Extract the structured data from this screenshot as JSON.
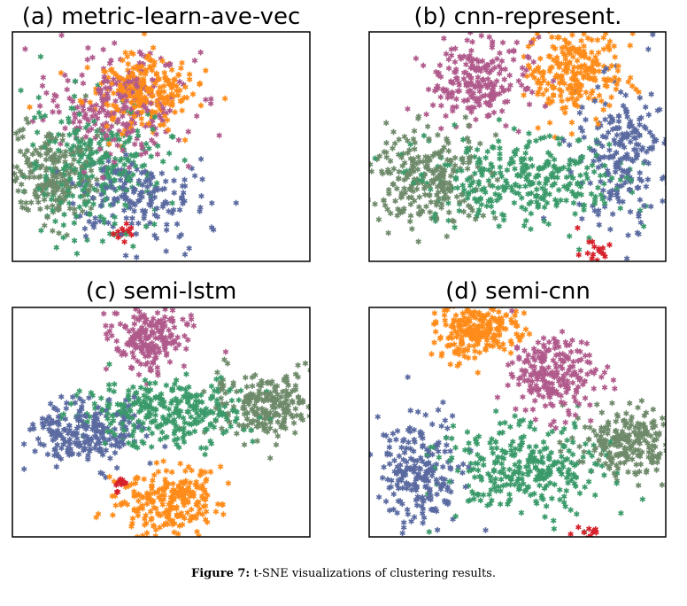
{
  "figure": {
    "caption_label": "Figure 7:",
    "caption_text": "t-SNE visualizations of clustering results."
  },
  "chart_data": [
    {
      "type": "scatter",
      "title": "(a) metric-learn-ave-vec",
      "xlabel": "",
      "ylabel": "",
      "grid": false,
      "marker": "asterisk",
      "series": [
        {
          "color": "#b05a8c",
          "clusters": [
            {
              "cx": 0.35,
              "cy": 0.68,
              "sx": 0.12,
              "sy": 0.12,
              "n": 240
            }
          ]
        },
        {
          "color": "#ff8c1a",
          "clusters": [
            {
              "cx": 0.42,
              "cy": 0.74,
              "sx": 0.09,
              "sy": 0.08,
              "n": 260
            }
          ]
        },
        {
          "color": "#5a6aa0",
          "clusters": [
            {
              "cx": 0.42,
              "cy": 0.28,
              "sx": 0.12,
              "sy": 0.09,
              "n": 170
            }
          ]
        },
        {
          "color": "#3a9a6a",
          "clusters": [
            {
              "cx": 0.28,
              "cy": 0.4,
              "sx": 0.12,
              "sy": 0.14,
              "n": 280
            }
          ]
        },
        {
          "color": "#6e8a6a",
          "clusters": [
            {
              "cx": 0.14,
              "cy": 0.38,
              "sx": 0.08,
              "sy": 0.1,
              "n": 220
            }
          ]
        },
        {
          "color": "#d6202a",
          "clusters": [
            {
              "cx": 0.37,
              "cy": 0.12,
              "sx": 0.02,
              "sy": 0.02,
              "n": 14
            }
          ]
        }
      ]
    },
    {
      "type": "scatter",
      "title": "(b) cnn-represent.",
      "xlabel": "",
      "ylabel": "",
      "grid": false,
      "marker": "asterisk",
      "series": [
        {
          "color": "#b05a8c",
          "clusters": [
            {
              "cx": 0.37,
              "cy": 0.78,
              "sx": 0.08,
              "sy": 0.1,
              "n": 220
            }
          ]
        },
        {
          "color": "#ff8c1a",
          "clusters": [
            {
              "cx": 0.69,
              "cy": 0.82,
              "sx": 0.08,
              "sy": 0.1,
              "n": 240
            }
          ]
        },
        {
          "color": "#5a6aa0",
          "clusters": [
            {
              "cx": 0.86,
              "cy": 0.46,
              "sx": 0.08,
              "sy": 0.16,
              "n": 220
            }
          ]
        },
        {
          "color": "#3a9a6a",
          "clusters": [
            {
              "cx": 0.52,
              "cy": 0.36,
              "sx": 0.17,
              "sy": 0.1,
              "n": 320
            }
          ]
        },
        {
          "color": "#6e8a6a",
          "clusters": [
            {
              "cx": 0.2,
              "cy": 0.36,
              "sx": 0.1,
              "sy": 0.1,
              "n": 240
            }
          ]
        },
        {
          "color": "#d6202a",
          "clusters": [
            {
              "cx": 0.75,
              "cy": 0.05,
              "sx": 0.02,
              "sy": 0.03,
              "n": 16
            }
          ]
        }
      ]
    },
    {
      "type": "scatter",
      "title": "(c) semi-lstm",
      "xlabel": "",
      "ylabel": "",
      "grid": false,
      "marker": "asterisk",
      "series": [
        {
          "color": "#b05a8c",
          "clusters": [
            {
              "cx": 0.46,
              "cy": 0.87,
              "sx": 0.06,
              "sy": 0.07,
              "n": 200
            }
          ]
        },
        {
          "color": "#ff8c1a",
          "clusters": [
            {
              "cx": 0.53,
              "cy": 0.15,
              "sx": 0.09,
              "sy": 0.07,
              "n": 240
            }
          ]
        },
        {
          "color": "#5a6aa0",
          "clusters": [
            {
              "cx": 0.25,
              "cy": 0.46,
              "sx": 0.09,
              "sy": 0.08,
              "n": 220
            }
          ]
        },
        {
          "color": "#3a9a6a",
          "clusters": [
            {
              "cx": 0.5,
              "cy": 0.54,
              "sx": 0.14,
              "sy": 0.07,
              "n": 300
            }
          ]
        },
        {
          "color": "#6e8a6a",
          "clusters": [
            {
              "cx": 0.86,
              "cy": 0.58,
              "sx": 0.09,
              "sy": 0.07,
              "n": 230
            }
          ]
        },
        {
          "color": "#d6202a",
          "clusters": [
            {
              "cx": 0.37,
              "cy": 0.23,
              "sx": 0.02,
              "sy": 0.02,
              "n": 12
            }
          ]
        }
      ]
    },
    {
      "type": "scatter",
      "title": "(d) semi-cnn",
      "xlabel": "",
      "ylabel": "",
      "grid": false,
      "marker": "asterisk",
      "series": [
        {
          "color": "#b05a8c",
          "clusters": [
            {
              "cx": 0.62,
              "cy": 0.7,
              "sx": 0.07,
              "sy": 0.08,
              "n": 220
            }
          ]
        },
        {
          "color": "#ff8c1a",
          "clusters": [
            {
              "cx": 0.36,
              "cy": 0.9,
              "sx": 0.07,
              "sy": 0.06,
              "n": 230
            }
          ]
        },
        {
          "color": "#5a6aa0",
          "clusters": [
            {
              "cx": 0.17,
              "cy": 0.28,
              "sx": 0.07,
              "sy": 0.11,
              "n": 220
            }
          ]
        },
        {
          "color": "#3a9a6a",
          "clusters": [
            {
              "cx": 0.52,
              "cy": 0.3,
              "sx": 0.14,
              "sy": 0.1,
              "n": 300
            }
          ]
        },
        {
          "color": "#6e8a6a",
          "clusters": [
            {
              "cx": 0.87,
              "cy": 0.4,
              "sx": 0.08,
              "sy": 0.07,
              "n": 220
            }
          ]
        },
        {
          "color": "#d6202a",
          "clusters": [
            {
              "cx": 0.73,
              "cy": 0.03,
              "sx": 0.02,
              "sy": 0.02,
              "n": 10
            }
          ]
        }
      ]
    }
  ]
}
